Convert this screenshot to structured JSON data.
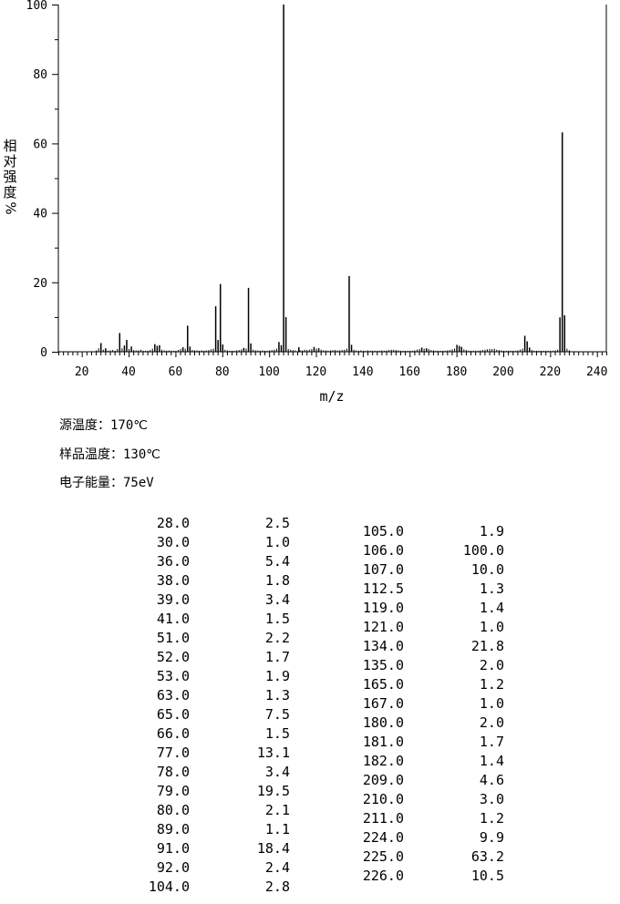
{
  "chart_data": {
    "type": "bar",
    "xlabel": "m/z",
    "ylabel": "相对强度",
    "ylabel_unit": "%",
    "xlim": [
      10,
      244
    ],
    "ylim": [
      0,
      100
    ],
    "x_ticks": [
      20,
      40,
      60,
      80,
      100,
      120,
      140,
      160,
      180,
      200,
      220,
      240
    ],
    "y_ticks": [
      0,
      20,
      40,
      60,
      80,
      100
    ],
    "peaks": [
      {
        "mz": "28.0",
        "ab": "2.5"
      },
      {
        "mz": "30.0",
        "ab": "1.0"
      },
      {
        "mz": "36.0",
        "ab": "5.4"
      },
      {
        "mz": "38.0",
        "ab": "1.8"
      },
      {
        "mz": "39.0",
        "ab": "3.4"
      },
      {
        "mz": "41.0",
        "ab": "1.5"
      },
      {
        "mz": "51.0",
        "ab": "2.2"
      },
      {
        "mz": "52.0",
        "ab": "1.7"
      },
      {
        "mz": "53.0",
        "ab": "1.9"
      },
      {
        "mz": "63.0",
        "ab": "1.3"
      },
      {
        "mz": "65.0",
        "ab": "7.5"
      },
      {
        "mz": "66.0",
        "ab": "1.5"
      },
      {
        "mz": "77.0",
        "ab": "13.1"
      },
      {
        "mz": "78.0",
        "ab": "3.4"
      },
      {
        "mz": "79.0",
        "ab": "19.5"
      },
      {
        "mz": "80.0",
        "ab": "2.1"
      },
      {
        "mz": "89.0",
        "ab": "1.1"
      },
      {
        "mz": "91.0",
        "ab": "18.4"
      },
      {
        "mz": "92.0",
        "ab": "2.4"
      },
      {
        "mz": "104.0",
        "ab": "2.8"
      },
      {
        "mz": "105.0",
        "ab": "1.9"
      },
      {
        "mz": "106.0",
        "ab": "100.0"
      },
      {
        "mz": "107.0",
        "ab": "10.0"
      },
      {
        "mz": "112.5",
        "ab": "1.3"
      },
      {
        "mz": "119.0",
        "ab": "1.4"
      },
      {
        "mz": "121.0",
        "ab": "1.0"
      },
      {
        "mz": "134.0",
        "ab": "21.8"
      },
      {
        "mz": "135.0",
        "ab": "2.0"
      },
      {
        "mz": "165.0",
        "ab": "1.2"
      },
      {
        "mz": "167.0",
        "ab": "1.0"
      },
      {
        "mz": "180.0",
        "ab": "2.0"
      },
      {
        "mz": "181.0",
        "ab": "1.7"
      },
      {
        "mz": "182.0",
        "ab": "1.4"
      },
      {
        "mz": "209.0",
        "ab": "4.6"
      },
      {
        "mz": "210.0",
        "ab": "3.0"
      },
      {
        "mz": "211.0",
        "ab": "1.2"
      },
      {
        "mz": "224.0",
        "ab": "9.9"
      },
      {
        "mz": "225.0",
        "ab": "63.2"
      },
      {
        "mz": "226.0",
        "ab": "10.5"
      }
    ],
    "minor_peaks": [
      [
        26,
        0.4
      ],
      [
        27,
        1.0
      ],
      [
        29,
        0.6
      ],
      [
        31,
        0.3
      ],
      [
        32,
        0.4
      ],
      [
        33,
        0.5
      ],
      [
        34,
        0.3
      ],
      [
        35,
        0.8
      ],
      [
        37,
        1.0
      ],
      [
        40,
        0.8
      ],
      [
        42,
        0.5
      ],
      [
        43,
        0.4
      ],
      [
        44,
        0.4
      ],
      [
        45,
        0.6
      ],
      [
        46,
        0.3
      ],
      [
        47,
        0.3
      ],
      [
        48,
        0.3
      ],
      [
        49,
        0.5
      ],
      [
        50,
        0.9
      ],
      [
        54,
        0.6
      ],
      [
        55,
        0.4
      ],
      [
        56,
        0.3
      ],
      [
        57,
        0.4
      ],
      [
        58,
        0.3
      ],
      [
        59,
        0.3
      ],
      [
        60,
        0.3
      ],
      [
        61,
        0.5
      ],
      [
        62,
        0.8
      ],
      [
        64,
        0.9
      ],
      [
        67,
        0.5
      ],
      [
        68,
        0.4
      ],
      [
        69,
        0.4
      ],
      [
        70,
        0.3
      ],
      [
        71,
        0.4
      ],
      [
        72,
        0.3
      ],
      [
        73,
        0.4
      ],
      [
        74,
        0.5
      ],
      [
        75,
        0.7
      ],
      [
        76,
        0.9
      ],
      [
        81,
        0.6
      ],
      [
        82,
        0.4
      ],
      [
        83,
        0.3
      ],
      [
        84,
        0.3
      ],
      [
        85,
        0.3
      ],
      [
        86,
        0.4
      ],
      [
        87,
        0.5
      ],
      [
        88,
        0.7
      ],
      [
        90,
        0.9
      ],
      [
        93,
        0.6
      ],
      [
        94,
        0.4
      ],
      [
        95,
        0.4
      ],
      [
        96,
        0.3
      ],
      [
        97,
        0.4
      ],
      [
        98,
        0.3
      ],
      [
        99,
        0.3
      ],
      [
        100,
        0.4
      ],
      [
        101,
        0.5
      ],
      [
        102,
        0.6
      ],
      [
        103,
        0.9
      ],
      [
        108,
        0.8
      ],
      [
        109,
        0.6
      ],
      [
        110,
        0.5
      ],
      [
        111,
        0.4
      ],
      [
        113,
        0.4
      ],
      [
        114,
        0.4
      ],
      [
        115,
        0.6
      ],
      [
        116,
        0.5
      ],
      [
        117,
        0.6
      ],
      [
        118,
        0.8
      ],
      [
        120,
        0.9
      ],
      [
        122,
        0.6
      ],
      [
        123,
        0.4
      ],
      [
        124,
        0.4
      ],
      [
        125,
        0.3
      ],
      [
        126,
        0.4
      ],
      [
        127,
        0.5
      ],
      [
        128,
        0.5
      ],
      [
        129,
        0.4
      ],
      [
        130,
        0.4
      ],
      [
        131,
        0.5
      ],
      [
        132,
        0.6
      ],
      [
        133,
        0.9
      ],
      [
        136,
        0.6
      ],
      [
        137,
        0.4
      ],
      [
        138,
        0.3
      ],
      [
        139,
        0.4
      ],
      [
        140,
        0.3
      ],
      [
        141,
        0.3
      ],
      [
        142,
        0.4
      ],
      [
        143,
        0.3
      ],
      [
        144,
        0.3
      ],
      [
        145,
        0.3
      ],
      [
        146,
        0.3
      ],
      [
        147,
        0.3
      ],
      [
        148,
        0.4
      ],
      [
        149,
        0.3
      ],
      [
        150,
        0.4
      ],
      [
        151,
        0.5
      ],
      [
        152,
        0.6
      ],
      [
        153,
        0.6
      ],
      [
        154,
        0.5
      ],
      [
        155,
        0.4
      ],
      [
        156,
        0.3
      ],
      [
        157,
        0.3
      ],
      [
        158,
        0.3
      ],
      [
        159,
        0.3
      ],
      [
        160,
        0.3
      ],
      [
        161,
        0.3
      ],
      [
        162,
        0.4
      ],
      [
        163,
        0.6
      ],
      [
        164,
        0.8
      ],
      [
        166,
        0.9
      ],
      [
        168,
        0.8
      ],
      [
        169,
        0.5
      ],
      [
        170,
        0.4
      ],
      [
        171,
        0.3
      ],
      [
        172,
        0.3
      ],
      [
        173,
        0.3
      ],
      [
        174,
        0.3
      ],
      [
        175,
        0.3
      ],
      [
        176,
        0.4
      ],
      [
        177,
        0.5
      ],
      [
        178,
        0.7
      ],
      [
        179,
        0.9
      ],
      [
        183,
        0.7
      ],
      [
        184,
        0.5
      ],
      [
        185,
        0.3
      ],
      [
        186,
        0.3
      ],
      [
        187,
        0.3
      ],
      [
        188,
        0.3
      ],
      [
        189,
        0.3
      ],
      [
        190,
        0.4
      ],
      [
        191,
        0.5
      ],
      [
        192,
        0.6
      ],
      [
        193,
        0.7
      ],
      [
        194,
        0.8
      ],
      [
        195,
        0.8
      ],
      [
        196,
        0.9
      ],
      [
        197,
        0.6
      ],
      [
        198,
        0.5
      ],
      [
        199,
        0.4
      ],
      [
        200,
        0.3
      ],
      [
        201,
        0.3
      ],
      [
        202,
        0.3
      ],
      [
        203,
        0.3
      ],
      [
        204,
        0.3
      ],
      [
        205,
        0.3
      ],
      [
        206,
        0.4
      ],
      [
        207,
        0.6
      ],
      [
        208,
        0.9
      ],
      [
        212,
        0.5
      ],
      [
        213,
        0.3
      ],
      [
        214,
        0.3
      ],
      [
        215,
        0.3
      ],
      [
        216,
        0.3
      ],
      [
        217,
        0.3
      ],
      [
        218,
        0.3
      ],
      [
        219,
        0.3
      ],
      [
        220,
        0.3
      ],
      [
        221,
        0.3
      ],
      [
        222,
        0.4
      ],
      [
        223,
        0.6
      ],
      [
        227,
        0.9
      ],
      [
        228,
        0.4
      ]
    ]
  },
  "conditions": [
    {
      "label": "源温度：",
      "value": "170℃"
    },
    {
      "label": "样品温度：",
      "value": "130℃"
    },
    {
      "label": "电子能量：",
      "value": "75eV"
    }
  ],
  "ylabel_chars": [
    "相",
    "对",
    "强",
    "度"
  ]
}
